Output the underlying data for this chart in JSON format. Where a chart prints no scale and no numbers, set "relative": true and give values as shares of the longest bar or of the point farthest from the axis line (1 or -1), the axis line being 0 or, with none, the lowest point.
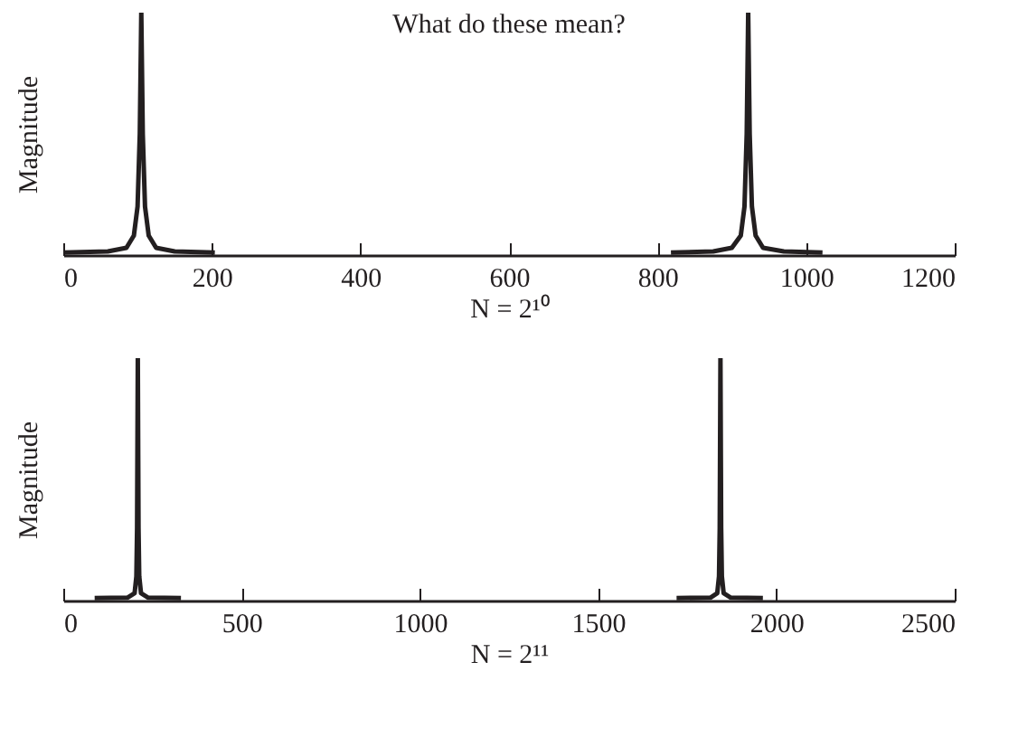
{
  "chart_data": [
    {
      "type": "line",
      "title": "What do these mean?",
      "xlabel": "N = 2¹⁰",
      "ylabel": "Magnitude",
      "relative": true,
      "xlim": [
        0,
        1200
      ],
      "xticks": [
        0,
        200,
        400,
        600,
        800,
        1000,
        1200
      ],
      "tick_labels": "x",
      "grid": false,
      "marker": "none",
      "line_style": "solid",
      "series": [
        {
          "color": "#231f20",
          "x": [
            0,
            60,
            85,
            95,
            100,
            103,
            105,
            107,
            110,
            115,
            125,
            150,
            204
          ],
          "values": [
            0.01,
            0.015,
            0.03,
            0.08,
            0.2,
            0.5,
            1,
            0.5,
            0.2,
            0.08,
            0.03,
            0.015,
            0.01
          ]
        },
        {
          "color": "#231f20",
          "x": [
            818,
            875,
            900,
            912,
            917,
            920,
            922,
            924,
            927,
            932,
            942,
            970,
            1022
          ],
          "values": [
            0.01,
            0.015,
            0.03,
            0.08,
            0.2,
            0.5,
            1,
            0.5,
            0.2,
            0.08,
            0.03,
            0.015,
            0.01
          ]
        }
      ]
    },
    {
      "type": "line",
      "xlabel": "N = 2¹¹",
      "ylabel": "Magnitude",
      "relative": true,
      "xlim": [
        0,
        2500
      ],
      "xticks": [
        0,
        500,
        1000,
        1500,
        2000,
        2500
      ],
      "tick_labels": "x",
      "grid": false,
      "marker": "none",
      "line_style": "solid",
      "series": [
        {
          "color": "#231f20",
          "x": [
            88,
            180,
            200,
            205,
            207,
            209,
            211,
            213,
            218,
            238,
            330
          ],
          "values": [
            0.01,
            0.012,
            0.03,
            0.1,
            0.3,
            1,
            0.3,
            0.1,
            0.03,
            0.012,
            0.01
          ]
        },
        {
          "color": "#231f20",
          "x": [
            1720,
            1815,
            1834,
            1839,
            1841,
            1843,
            1845,
            1847,
            1852,
            1872,
            1962
          ],
          "values": [
            0.01,
            0.012,
            0.03,
            0.1,
            0.3,
            1,
            0.3,
            0.1,
            0.03,
            0.012,
            0.01
          ]
        }
      ]
    }
  ]
}
